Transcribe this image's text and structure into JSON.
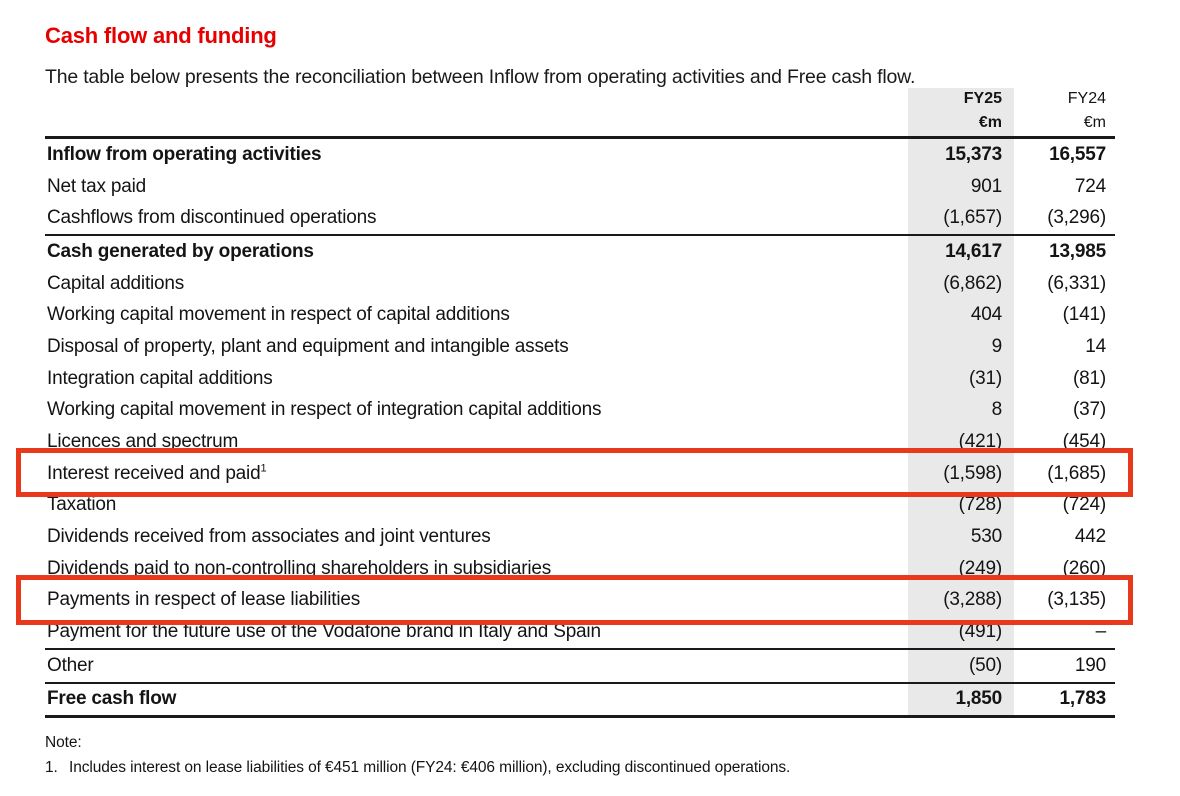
{
  "page": {
    "title": "Cash flow and funding",
    "subtitle": "The table below presents the reconciliation between Inflow from operating activities and Free cash flow."
  },
  "colors": {
    "title_red": "#e60000",
    "annotation_red": "#e8391d",
    "fy25_column_gray": "#e9e9e9"
  },
  "table": {
    "columns": [
      {
        "year": "FY25",
        "unit": "€m"
      },
      {
        "year": "FY24",
        "unit": "€m"
      }
    ],
    "rows": [
      {
        "label": "Inflow from operating activities",
        "sup": "",
        "fy25": "15,373",
        "fy24": "16,557",
        "bold": true
      },
      {
        "label": "Net tax paid",
        "sup": "",
        "fy25": "901",
        "fy24": "724"
      },
      {
        "label": "Cashflows from discontinued operations",
        "sup": "",
        "fy25": "(1,657)",
        "fy24": "(3,296)",
        "rule_below": true
      },
      {
        "label": "Cash generated by operations",
        "sup": "",
        "fy25": "14,617",
        "fy24": "13,985",
        "bold": true
      },
      {
        "label": "Capital additions",
        "sup": "",
        "fy25": "(6,862)",
        "fy24": "(6,331)"
      },
      {
        "label": "Working capital movement in respect of capital additions",
        "sup": "",
        "fy25": "404",
        "fy24": "(141)"
      },
      {
        "label": "Disposal of property, plant and equipment and intangible assets",
        "sup": "",
        "fy25": "9",
        "fy24": "14"
      },
      {
        "label": "Integration capital additions",
        "sup": "",
        "fy25": "(31)",
        "fy24": "(81)"
      },
      {
        "label": "Working capital movement in respect of integration capital additions",
        "sup": "",
        "fy25": "8",
        "fy24": "(37)"
      },
      {
        "label": "Licences and spectrum",
        "sup": "",
        "fy25": "(421)",
        "fy24": "(454)"
      },
      {
        "label": "Interest received and paid",
        "sup": "1",
        "fy25": "(1,598)",
        "fy24": "(1,685)"
      },
      {
        "label": "Taxation",
        "sup": "",
        "fy25": "(728)",
        "fy24": "(724)"
      },
      {
        "label": "Dividends received from associates and joint ventures",
        "sup": "",
        "fy25": "530",
        "fy24": "442"
      },
      {
        "label": "Dividends paid to non-controlling shareholders in subsidiaries",
        "sup": "",
        "fy25": "(249)",
        "fy24": "(260)"
      },
      {
        "label": "Payments in respect of lease liabilities",
        "sup": "",
        "fy25": "(3,288)",
        "fy24": "(3,135)"
      },
      {
        "label": "Payment for the future use of the Vodafone brand in Italy and Spain",
        "sup": "",
        "fy25": "(491)",
        "fy24": "–",
        "rule_below": true
      },
      {
        "label": "Other",
        "sup": "",
        "fy25": "(50)",
        "fy24": "190",
        "rule_below": true
      },
      {
        "label": "Free cash flow",
        "sup": "",
        "fy25": "1,850",
        "fy24": "1,783",
        "bold": true,
        "total": true,
        "rule_below_thick": true
      }
    ]
  },
  "annotations": {
    "boxes": [
      {
        "target_row": "Interest received and paid"
      },
      {
        "target_row": "Payments in respect of lease liabilities"
      }
    ]
  },
  "note": {
    "heading": "Note:",
    "items": [
      {
        "marker": "1.",
        "text": "Includes interest on lease liabilities of €451 million (FY24: €406 million), excluding discontinued operations."
      }
    ]
  }
}
